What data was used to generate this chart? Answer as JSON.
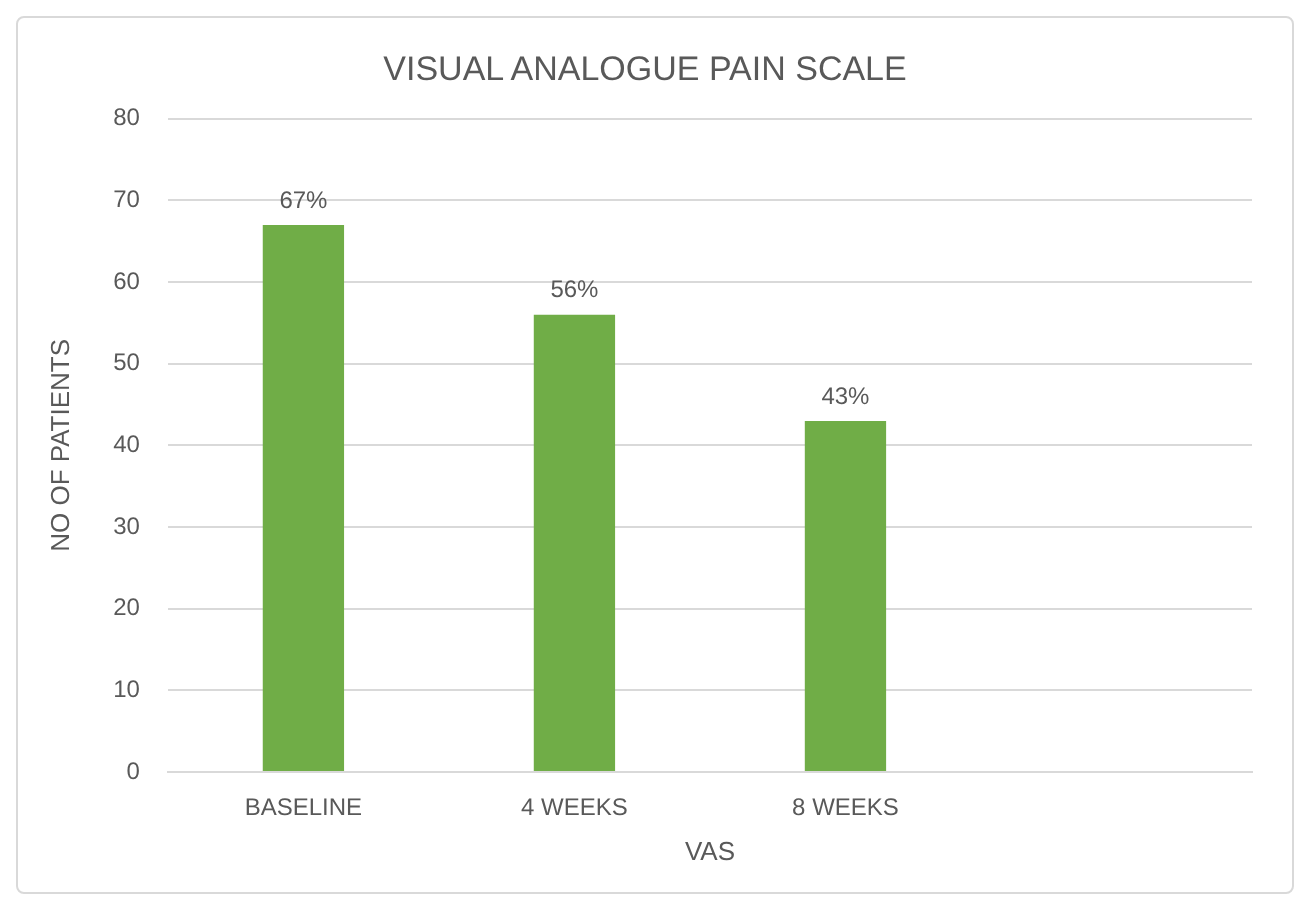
{
  "chart_data": {
    "type": "bar",
    "title": "VISUAL ANALOGUE PAIN SCALE",
    "xlabel": "VAS",
    "ylabel": "NO OF PATIENTS",
    "categories": [
      "BASELINE",
      "4 WEEKS",
      "8 WEEKS",
      null
    ],
    "values": [
      67,
      56,
      43,
      null
    ],
    "value_labels": [
      "67%",
      "56%",
      "43%",
      null
    ],
    "color": "#70ad47",
    "ylim": [
      0,
      80
    ],
    "yticks": [
      0,
      10,
      20,
      30,
      40,
      50,
      60,
      70,
      80
    ],
    "grid": "y",
    "legend": false
  }
}
